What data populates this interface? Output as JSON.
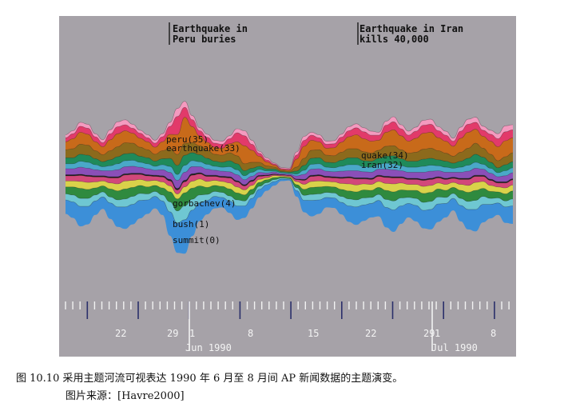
{
  "annotations": {
    "peru": "Earthquake in\nPeru buries",
    "iran": "Earthquake in Iran\nkills 40,000"
  },
  "caption": {
    "line1": "图 10.10 采用主题河流可视表达 1990 年 6 月至 8 月间 AP 新闻数据的主题演变。",
    "line2": "图片来源：[Havre2000]"
  },
  "chart_data": {
    "type": "area",
    "subtype": "streamgraph (ThemeRiver)",
    "title": "",
    "xlabel": "",
    "ylabel": "",
    "axis": {
      "day_labels": [
        "22",
        "29",
        "1",
        "8",
        "15",
        "22",
        "29",
        "1",
        "8"
      ],
      "month_labels": [
        "Jun 1990",
        "Jul 1990"
      ]
    },
    "x": [
      0,
      1,
      2,
      3,
      4,
      5,
      6,
      7,
      8,
      9,
      10,
      11,
      12,
      13,
      14,
      15,
      16,
      17,
      18,
      19,
      20,
      21,
      22,
      23,
      24,
      25,
      26,
      27,
      28,
      29,
      30,
      31,
      32,
      33,
      34,
      35,
      36,
      37,
      38,
      39,
      40,
      41,
      42,
      43,
      44,
      45,
      46,
      47,
      48,
      49,
      50,
      51,
      52,
      53,
      54,
      55,
      56,
      57,
      58,
      59,
      60
    ],
    "center": [
      0,
      0,
      0,
      0,
      0,
      0,
      0,
      0,
      0,
      0,
      0,
      0,
      0,
      0,
      6,
      8,
      4,
      2,
      0,
      0,
      0,
      0,
      0,
      0,
      0,
      0,
      0,
      0,
      0,
      0,
      0,
      0,
      0,
      0,
      0,
      0,
      0,
      0,
      0,
      0,
      0,
      0,
      0,
      0,
      0,
      0,
      0,
      0,
      0,
      0,
      0,
      0,
      0,
      0,
      0,
      0,
      0,
      0,
      0,
      0,
      0
    ],
    "series": [
      {
        "color": "#3c8fd8",
        "values": [
          14,
          16,
          20,
          18,
          14,
          12,
          16,
          20,
          22,
          20,
          18,
          14,
          12,
          14,
          24,
          30,
          34,
          26,
          18,
          14,
          12,
          10,
          12,
          14,
          12,
          10,
          8,
          6,
          4,
          2,
          1,
          6,
          12,
          16,
          14,
          10,
          10,
          12,
          16,
          18,
          16,
          14,
          16,
          20,
          22,
          18,
          14,
          16,
          18,
          20,
          18,
          14,
          12,
          16,
          20,
          22,
          18,
          14,
          12,
          16,
          18
        ]
      },
      {
        "color": "#6fc7d2",
        "values": [
          6,
          7,
          8,
          8,
          6,
          5,
          6,
          7,
          8,
          8,
          7,
          6,
          5,
          6,
          10,
          12,
          14,
          11,
          8,
          6,
          5,
          5,
          5,
          6,
          5,
          4,
          3,
          2,
          2,
          1,
          1,
          3,
          5,
          6,
          6,
          5,
          5,
          6,
          7,
          7,
          7,
          6,
          6,
          8,
          9,
          8,
          6,
          7,
          8,
          8,
          7,
          6,
          5,
          7,
          8,
          9,
          8,
          6,
          5,
          6,
          7
        ]
      },
      {
        "color": "#2f8a3f",
        "values": [
          7,
          8,
          10,
          9,
          7,
          6,
          8,
          9,
          10,
          9,
          8,
          7,
          6,
          7,
          10,
          12,
          13,
          11,
          9,
          7,
          6,
          6,
          7,
          7,
          6,
          5,
          4,
          3,
          2,
          1,
          1,
          3,
          6,
          7,
          7,
          6,
          6,
          7,
          8,
          8,
          8,
          7,
          7,
          9,
          9,
          8,
          7,
          8,
          9,
          9,
          8,
          7,
          6,
          8,
          9,
          10,
          8,
          7,
          6,
          7,
          8
        ]
      },
      {
        "color": "#d9d24a",
        "values": [
          6,
          6,
          7,
          7,
          6,
          5,
          6,
          7,
          8,
          7,
          6,
          6,
          5,
          6,
          6,
          5,
          6,
          7,
          7,
          6,
          5,
          5,
          6,
          6,
          5,
          4,
          3,
          2,
          2,
          1,
          1,
          3,
          5,
          6,
          6,
          5,
          5,
          6,
          7,
          7,
          6,
          6,
          6,
          7,
          8,
          7,
          6,
          6,
          7,
          7,
          6,
          6,
          5,
          6,
          7,
          8,
          7,
          6,
          5,
          6,
          6
        ]
      },
      {
        "color": "#d2487a",
        "values": [
          5,
          5,
          6,
          6,
          5,
          4,
          5,
          6,
          6,
          6,
          5,
          5,
          4,
          5,
          5,
          4,
          5,
          6,
          5,
          5,
          4,
          4,
          5,
          5,
          4,
          4,
          3,
          2,
          1,
          1,
          1,
          2,
          4,
          5,
          5,
          4,
          4,
          5,
          6,
          6,
          5,
          5,
          5,
          6,
          6,
          5,
          5,
          5,
          6,
          6,
          5,
          5,
          4,
          5,
          6,
          6,
          5,
          5,
          4,
          5,
          5
        ]
      },
      {
        "color": "#222222",
        "values": [
          1.2,
          1.2,
          1.2,
          1.2,
          1.2,
          1.2,
          1.2,
          1.2,
          1.2,
          1.2,
          1.2,
          1.2,
          1.2,
          1.2,
          1.5,
          1.5,
          1.5,
          1.5,
          1.2,
          1.2,
          1.2,
          1.2,
          1.2,
          1.2,
          1.2,
          1.2,
          1,
          0.8,
          0.6,
          0.4,
          0.3,
          0.6,
          1,
          1.2,
          1.2,
          1.2,
          1.2,
          1.2,
          1.2,
          1.2,
          1.2,
          1.2,
          1.2,
          1.2,
          1.2,
          1.2,
          1.2,
          1.2,
          1.2,
          1.2,
          1.2,
          1.2,
          1.2,
          1.2,
          1.2,
          1.2,
          1.2,
          1.2,
          1.2,
          1.2,
          1.2
        ]
      },
      {
        "color": "#8a4fb8",
        "values": [
          6,
          6,
          7,
          7,
          6,
          5,
          6,
          7,
          7,
          7,
          6,
          6,
          5,
          6,
          7,
          8,
          8,
          7,
          6,
          6,
          5,
          5,
          5,
          6,
          5,
          4,
          3,
          2,
          2,
          1,
          1,
          3,
          5,
          6,
          6,
          5,
          5,
          6,
          6,
          7,
          6,
          6,
          6,
          7,
          7,
          6,
          6,
          6,
          7,
          7,
          6,
          6,
          5,
          6,
          7,
          7,
          6,
          6,
          5,
          6,
          6
        ]
      },
      {
        "color": "#4aa8c8",
        "values": [
          5,
          5,
          6,
          6,
          5,
          4,
          5,
          6,
          6,
          6,
          5,
          5,
          4,
          5,
          6,
          6,
          7,
          6,
          5,
          5,
          4,
          4,
          5,
          5,
          4,
          4,
          3,
          2,
          1,
          1,
          1,
          2,
          4,
          5,
          5,
          4,
          4,
          5,
          6,
          6,
          5,
          5,
          5,
          6,
          6,
          5,
          5,
          5,
          6,
          6,
          5,
          5,
          4,
          5,
          6,
          6,
          5,
          5,
          4,
          5,
          5
        ]
      },
      {
        "color": "#1f8a5a",
        "values": [
          6,
          6,
          7,
          7,
          6,
          5,
          6,
          7,
          7,
          7,
          6,
          6,
          5,
          6,
          8,
          9,
          10,
          8,
          7,
          6,
          5,
          5,
          6,
          6,
          5,
          4,
          3,
          2,
          2,
          1,
          1,
          3,
          5,
          6,
          6,
          5,
          5,
          6,
          7,
          7,
          6,
          6,
          6,
          7,
          8,
          7,
          6,
          6,
          7,
          7,
          6,
          6,
          5,
          6,
          7,
          8,
          7,
          6,
          5,
          6,
          6
        ]
      },
      {
        "color": "#8c6a1c",
        "values": [
          8,
          9,
          10,
          10,
          8,
          7,
          9,
          10,
          11,
          10,
          9,
          8,
          7,
          8,
          10,
          11,
          12,
          10,
          9,
          8,
          7,
          7,
          8,
          8,
          7,
          6,
          4,
          3,
          2,
          1,
          1,
          4,
          7,
          8,
          8,
          7,
          7,
          8,
          9,
          9,
          9,
          8,
          8,
          10,
          10,
          9,
          8,
          9,
          10,
          10,
          9,
          8,
          7,
          9,
          10,
          11,
          9,
          8,
          7,
          8,
          9
        ]
      },
      {
        "color": "#c86a1a",
        "values": [
          8,
          10,
          12,
          11,
          9,
          8,
          11,
          13,
          12,
          10,
          9,
          8,
          7,
          9,
          14,
          20,
          26,
          16,
          10,
          8,
          7,
          7,
          9,
          14,
          18,
          12,
          6,
          4,
          2,
          1,
          1,
          8,
          12,
          10,
          8,
          7,
          8,
          10,
          12,
          14,
          13,
          12,
          10,
          14,
          16,
          14,
          12,
          14,
          16,
          16,
          13,
          12,
          10,
          14,
          16,
          14,
          12,
          13,
          14,
          16,
          15
        ]
      },
      {
        "color": "#e23a6a",
        "values": [
          4,
          5,
          6,
          6,
          5,
          4,
          6,
          7,
          6,
          5,
          5,
          4,
          4,
          5,
          8,
          18,
          10,
          7,
          5,
          5,
          4,
          4,
          5,
          9,
          10,
          6,
          3,
          2,
          1,
          1,
          1,
          4,
          6,
          5,
          4,
          4,
          4,
          5,
          6,
          7,
          7,
          6,
          5,
          7,
          8,
          7,
          6,
          7,
          8,
          8,
          7,
          6,
          5,
          7,
          8,
          7,
          6,
          7,
          8,
          9,
          8
        ]
      },
      {
        "color": "#f49abf",
        "values": [
          3,
          3,
          4,
          4,
          3,
          3,
          4,
          5,
          5,
          4,
          3,
          3,
          3,
          3,
          4,
          8,
          6,
          4,
          3,
          3,
          3,
          3,
          3,
          4,
          5,
          4,
          2,
          2,
          1,
          1,
          1,
          3,
          4,
          3,
          3,
          3,
          3,
          3,
          4,
          4,
          4,
          4,
          3,
          4,
          5,
          4,
          4,
          4,
          5,
          5,
          4,
          4,
          3,
          4,
          5,
          5,
          4,
          4,
          5,
          6,
          5
        ]
      }
    ]
  },
  "inline_labels": {
    "peru": "peru(35)",
    "earthquake": "earthquake(33)",
    "quake": "quake(34)",
    "iran": "iran(32)",
    "gorbachev": "gorbachev(4)",
    "bush": "bush(1)",
    "summit": "summit(0)"
  }
}
